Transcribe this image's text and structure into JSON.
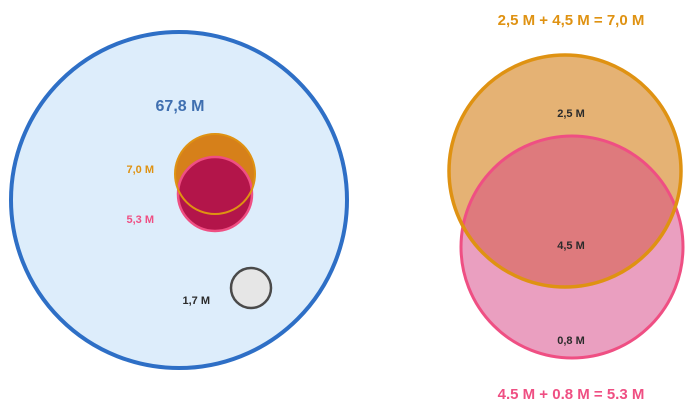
{
  "left_diagram": {
    "total_label": "67,8 M",
    "orange_label": "7,0 M",
    "pink_label": "5,3 M",
    "gray_label": "1,7 M"
  },
  "right_diagram": {
    "top_equation": "2,5 M + 4,5 M = 7,0 M",
    "bottom_equation": "4,5 M + 0,8 M = 5,3 M",
    "orange_only_label": "2,5 M",
    "overlap_label": "4,5 M",
    "pink_only_label": "0,8 M"
  },
  "colors": {
    "blue_stroke": "#2e6fc6",
    "blue_fill": "#ddedfb",
    "title_blue": "#3f6fb0",
    "orange": "#df9212",
    "orange_fill": "#e5b274",
    "orange_dark": "#d6801a",
    "pink": "#ef4f83",
    "crimson": "#b3154a",
    "gray_fill": "#e6e6e6",
    "gray_stroke": "#4a4a4a",
    "text_dark": "#2b2b2b"
  }
}
